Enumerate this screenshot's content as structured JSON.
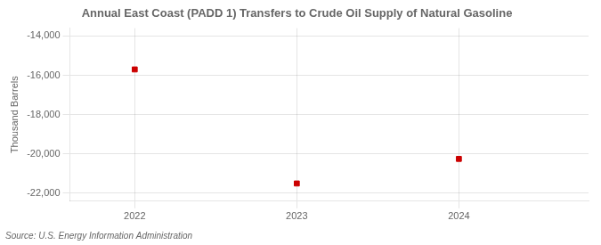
{
  "chart_data": {
    "type": "scatter",
    "title": "Annual East Coast (PADD 1) Transfers to Crude Oil Supply of Natural Gasoline",
    "ylabel": "Thousand Barrels",
    "source": "Source: U.S. Energy Information Administration",
    "x": [
      2022,
      2023,
      2024
    ],
    "values": [
      -15700,
      -21500,
      -20250
    ],
    "color": "#cc0000",
    "marker": "square",
    "xlim": [
      2021.6,
      2024.8
    ],
    "xticks": [
      2022,
      2023,
      2024
    ],
    "ylim": [
      -22400,
      -13600
    ],
    "yticks": [
      {
        "value": -14000,
        "label": "-14,000"
      },
      {
        "value": -16000,
        "label": "-16,000"
      },
      {
        "value": -18000,
        "label": "-18,000"
      },
      {
        "value": -20000,
        "label": "-20,000"
      },
      {
        "value": -22000,
        "label": "-22,000"
      }
    ],
    "grid": true
  }
}
